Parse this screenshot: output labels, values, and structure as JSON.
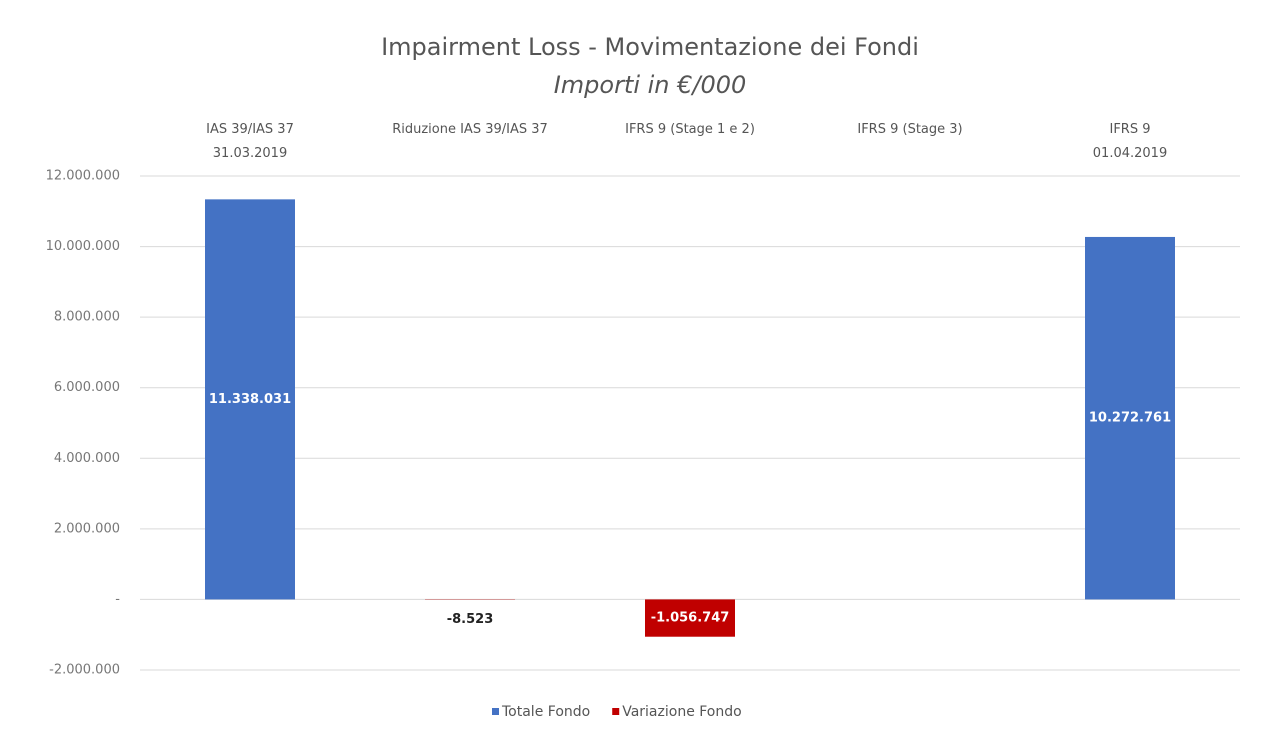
{
  "chart_data": {
    "type": "bar",
    "title": "Impairment Loss - Movimentazione dei Fondi",
    "subtitle": "Importi in €/000",
    "categories": [
      "IAS 39/IAS 37\n31.03.2019",
      "Riduzione IAS 39/IAS 37",
      "IFRS 9 (Stage 1 e 2)",
      "IFRS 9 (Stage 3)",
      "IFRS 9\n01.04.2019"
    ],
    "series": [
      {
        "name": "Totale Fondo",
        "color": "#4472c4",
        "values": [
          11338031,
          null,
          null,
          null,
          10272761
        ],
        "value_labels": [
          "11.338.031",
          null,
          null,
          null,
          "10.272.761"
        ]
      },
      {
        "name": "Variazione Fondo",
        "color": "#c00000",
        "values": [
          null,
          -8523,
          -1056747,
          null,
          null
        ],
        "value_labels": [
          null,
          "-8.523",
          "-1.056.747",
          null,
          null
        ]
      }
    ],
    "ylim": [
      -2000000,
      12000000
    ],
    "yticks": [
      {
        "value": -2000000,
        "label": "-2.000.000"
      },
      {
        "value": 0,
        "label": "-"
      },
      {
        "value": 2000000,
        "label": "2.000.000"
      },
      {
        "value": 4000000,
        "label": "4.000.000"
      },
      {
        "value": 6000000,
        "label": "6.000.000"
      },
      {
        "value": 8000000,
        "label": "8.000.000"
      },
      {
        "value": 10000000,
        "label": "10.000.000"
      },
      {
        "value": 12000000,
        "label": "12.000.000"
      }
    ],
    "grid": true,
    "legend": "bottom"
  }
}
